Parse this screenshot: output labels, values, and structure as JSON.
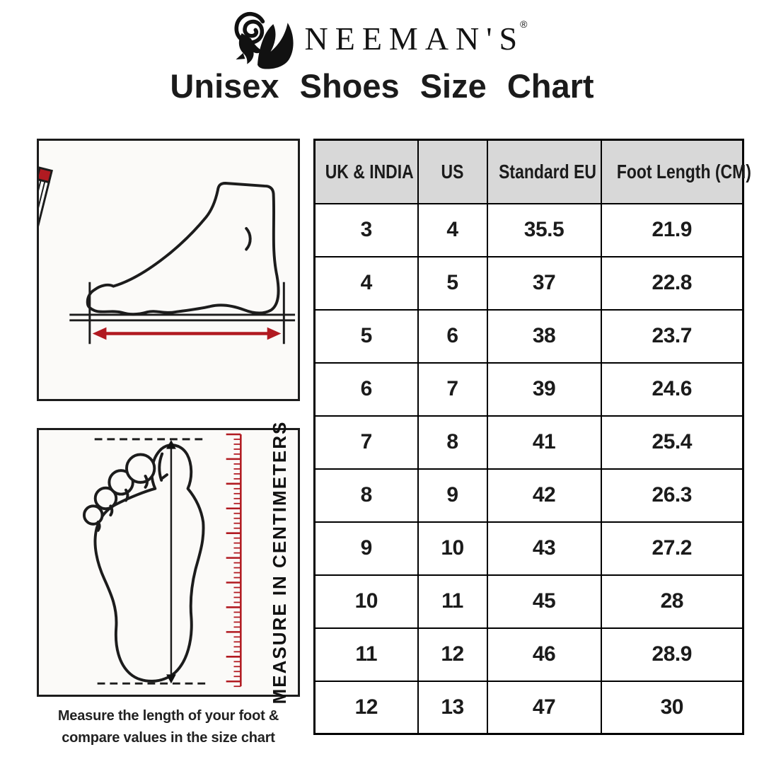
{
  "brand": {
    "name": "NEEMAN'S",
    "registered_mark": "®",
    "logo_icon": "ram-head-monogram"
  },
  "title": "Unisex Shoes Size Chart",
  "measure_diagrams": {
    "top_diagram": "foot-side-view-with-pencil-and-length-arrow",
    "bottom_diagram": "footprint-with-vertical-arrow-and-cm-ruler",
    "ruler_label": "MEASURE IN CENTIMETERS",
    "caption": [
      "Measure the length of your foot &",
      "compare values in the size chart"
    ]
  },
  "chart_data": {
    "type": "table",
    "title": "Unisex Shoes Size Chart",
    "columns": [
      "UK & INDIA",
      "US",
      "Standard EU",
      "Foot Length (CM)"
    ],
    "rows": [
      [
        "3",
        "4",
        "35.5",
        "21.9"
      ],
      [
        "4",
        "5",
        "37",
        "22.8"
      ],
      [
        "5",
        "6",
        "38",
        "23.7"
      ],
      [
        "6",
        "7",
        "39",
        "24.6"
      ],
      [
        "7",
        "8",
        "41",
        "25.4"
      ],
      [
        "8",
        "9",
        "42",
        "26.3"
      ],
      [
        "9",
        "10",
        "43",
        "27.2"
      ],
      [
        "10",
        "11",
        "45",
        "28"
      ],
      [
        "11",
        "12",
        "46",
        "28.9"
      ],
      [
        "12",
        "13",
        "47",
        "30"
      ]
    ]
  },
  "colors": {
    "accent_red": "#b11a21",
    "header_bg": "#d8d8d8",
    "text": "#1b1b1b"
  }
}
